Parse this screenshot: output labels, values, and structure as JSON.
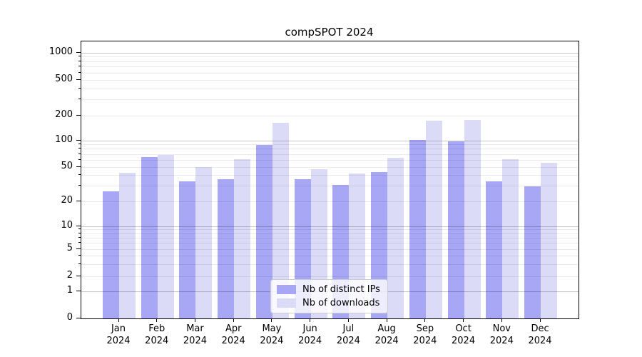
{
  "title": "compSPOT 2024",
  "chart_data": {
    "type": "bar",
    "scale": "symlog",
    "grid": true,
    "title": "compSPOT 2024",
    "xlabel": "",
    "ylabel": "",
    "year": "2024",
    "months": [
      "Jan",
      "Feb",
      "Mar",
      "Apr",
      "May",
      "Jun",
      "Jul",
      "Aug",
      "Sep",
      "Oct",
      "Nov",
      "Dec"
    ],
    "categories": [
      "Jan 2024",
      "Feb 2024",
      "Mar 2024",
      "Apr 2024",
      "May 2024",
      "Jun 2024",
      "Jul 2024",
      "Aug 2024",
      "Sep 2024",
      "Oct 2024",
      "Nov 2024",
      "Dec 2024"
    ],
    "yticks": [
      0,
      1,
      2,
      5,
      10,
      20,
      50,
      100,
      200,
      500,
      1000
    ],
    "ylim": [
      0,
      1350
    ],
    "legend_position": "lower center",
    "series": [
      {
        "name": "Nb of distinct IPs",
        "color": "#a7a7f6",
        "values": [
          26,
          65,
          34,
          36,
          89,
          36,
          31,
          44,
          103,
          99,
          34,
          30
        ]
      },
      {
        "name": "Nb of downloads",
        "color": "#dbdbf8",
        "values": [
          43,
          69,
          50,
          62,
          163,
          47,
          42,
          64,
          174,
          179,
          62,
          56
        ]
      }
    ]
  }
}
